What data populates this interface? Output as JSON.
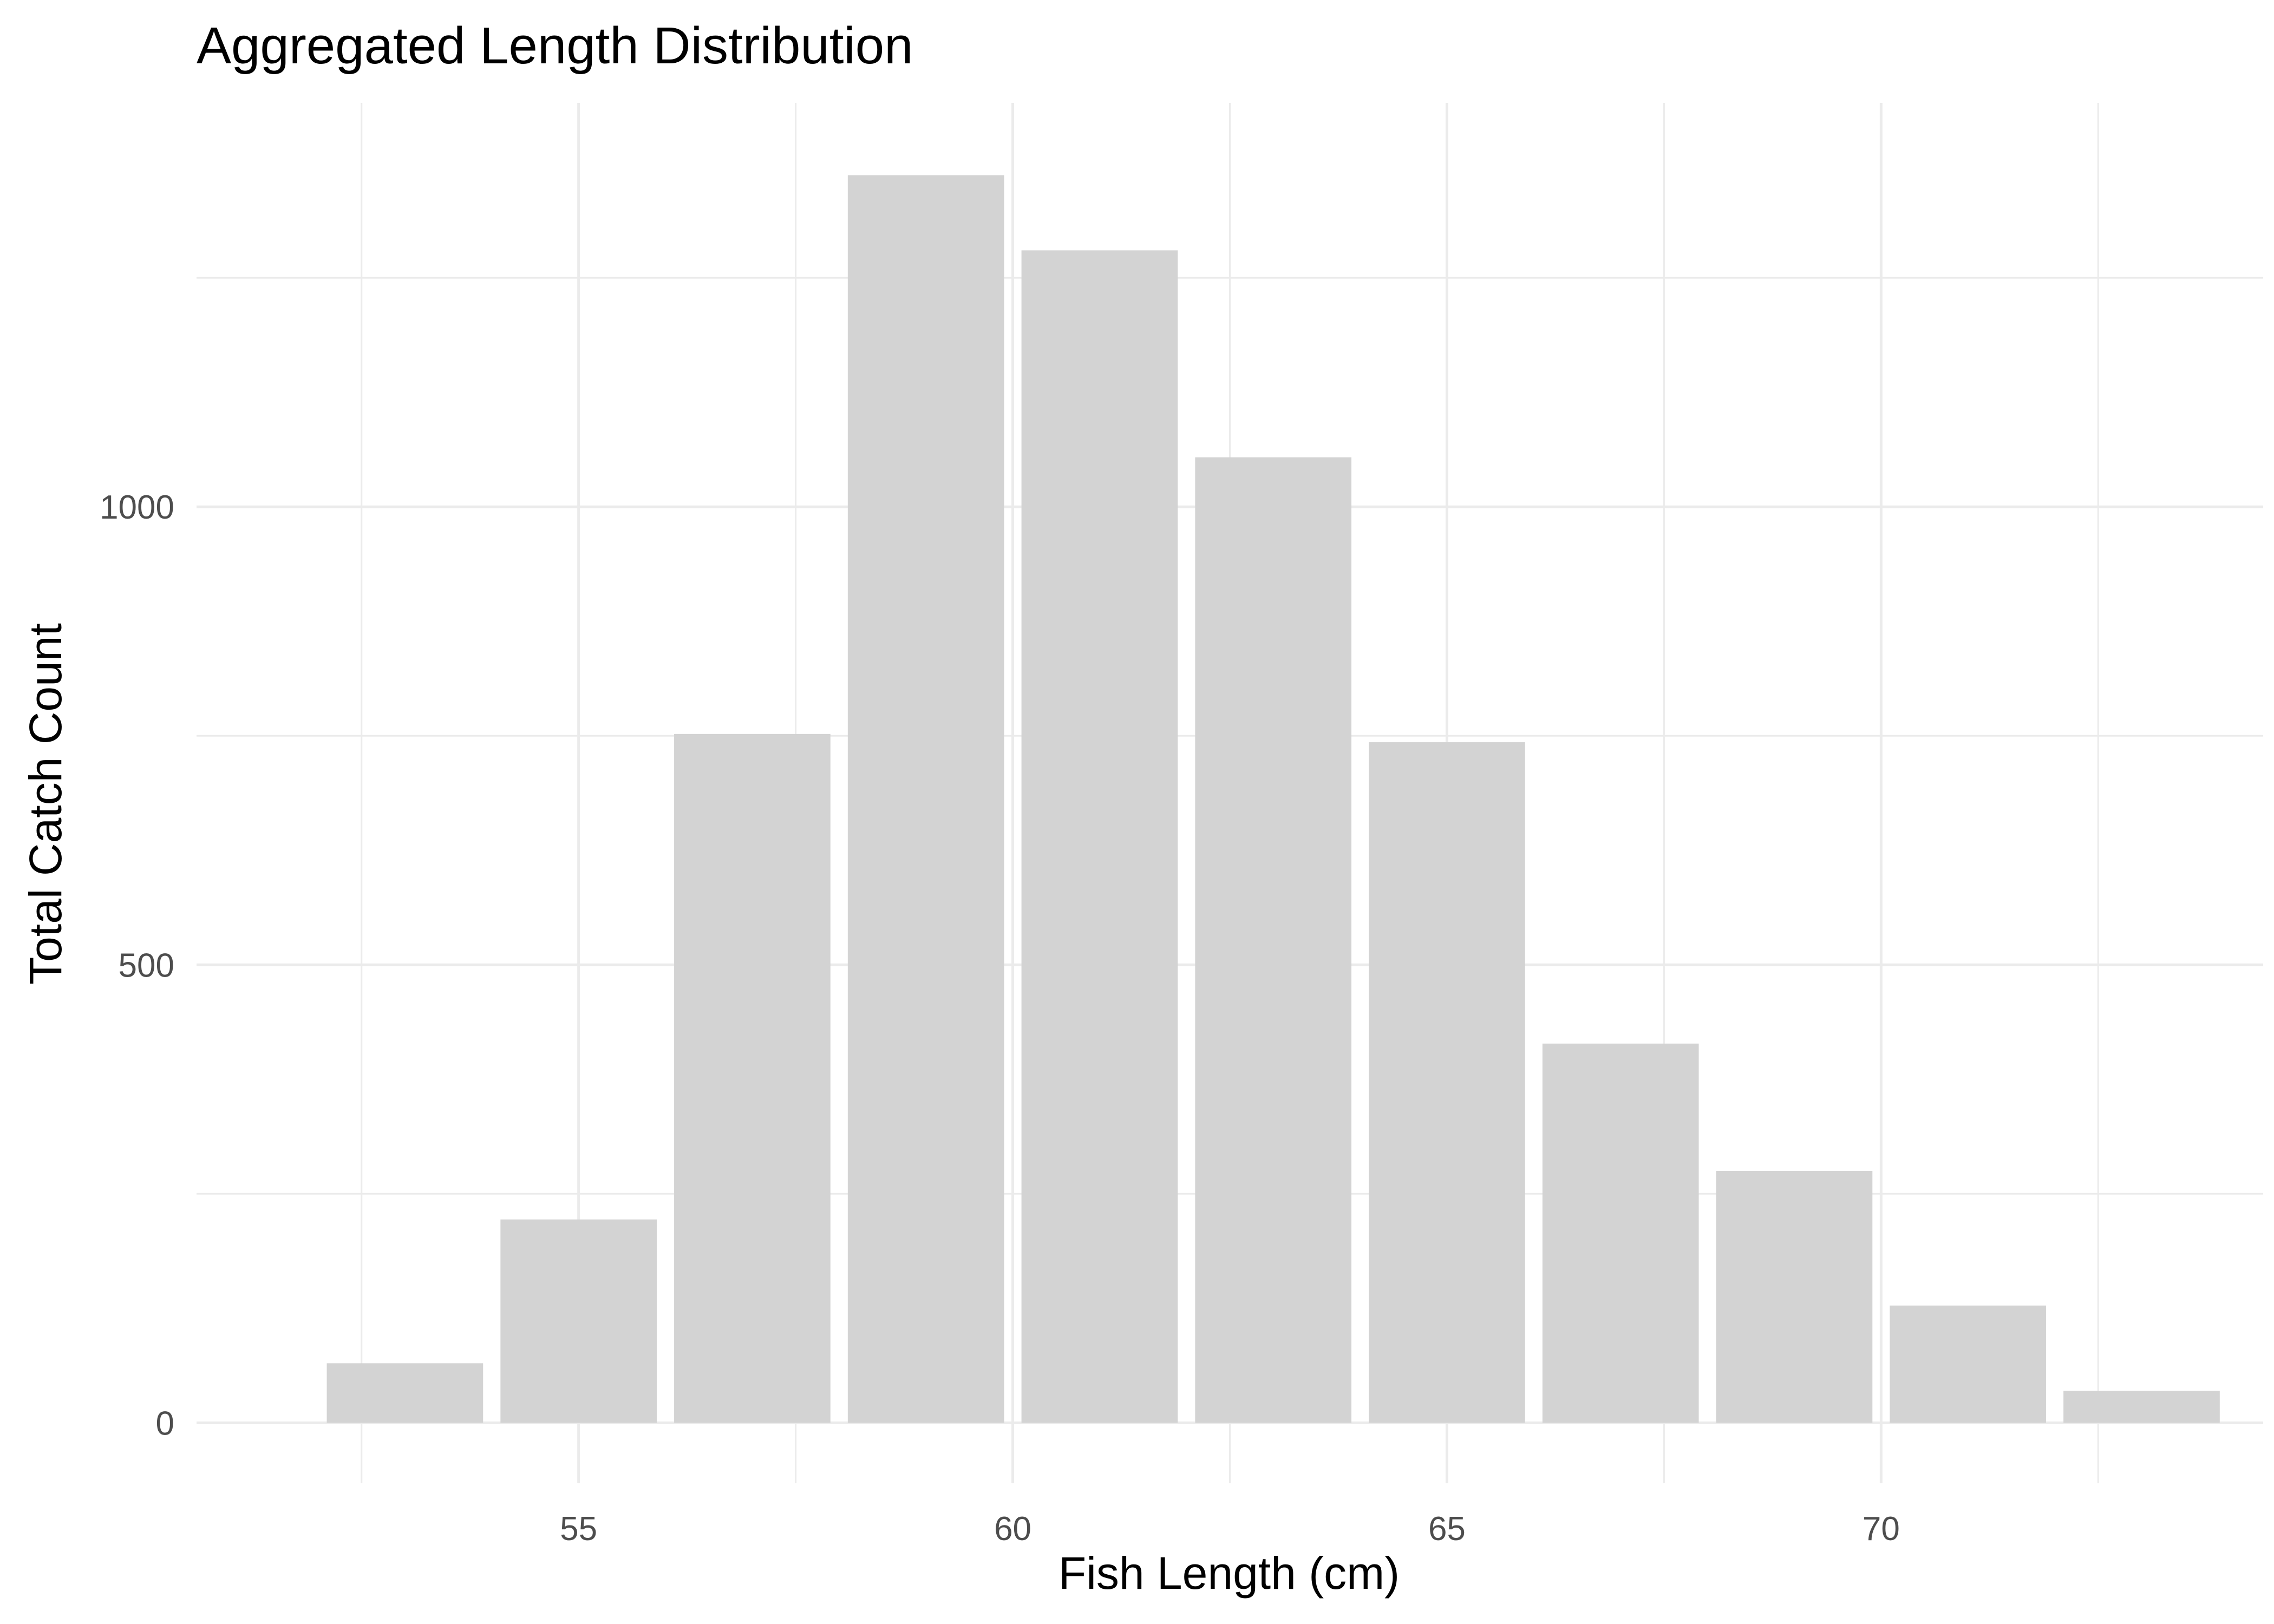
{
  "chart_data": {
    "type": "bar",
    "title": "Aggregated Length Distribution",
    "xlabel": "Fish Length (cm)",
    "ylabel": "Total Catch Count",
    "x": [
      53,
      55,
      57,
      59,
      61,
      63,
      65,
      67,
      69,
      71,
      73
    ],
    "values": [
      65,
      222,
      752,
      1362,
      1280,
      1054,
      743,
      414,
      275,
      128,
      35
    ],
    "xlim": [
      50.6,
      74.4
    ],
    "ylim": [
      -66,
      1441
    ],
    "x_ticks": [
      55,
      60,
      65,
      70
    ],
    "x_tick_labels": [
      "55",
      "60",
      "65",
      "70"
    ],
    "y_ticks": [
      0,
      500,
      1000
    ],
    "y_tick_labels": [
      "0",
      "500",
      "1000"
    ],
    "y_minor_ticks": [
      250,
      750,
      1250
    ],
    "x_minor_ticks": [
      52.5,
      57.5,
      62.5,
      67.5,
      72.5
    ],
    "bar_width": 1.8,
    "grid": true,
    "legend": "none",
    "colors": {
      "bar": "#d3d3d3",
      "grid": "#ebebeb",
      "tick_text": "#4d4d4d",
      "text": "#000000",
      "background": "#ffffff"
    }
  }
}
